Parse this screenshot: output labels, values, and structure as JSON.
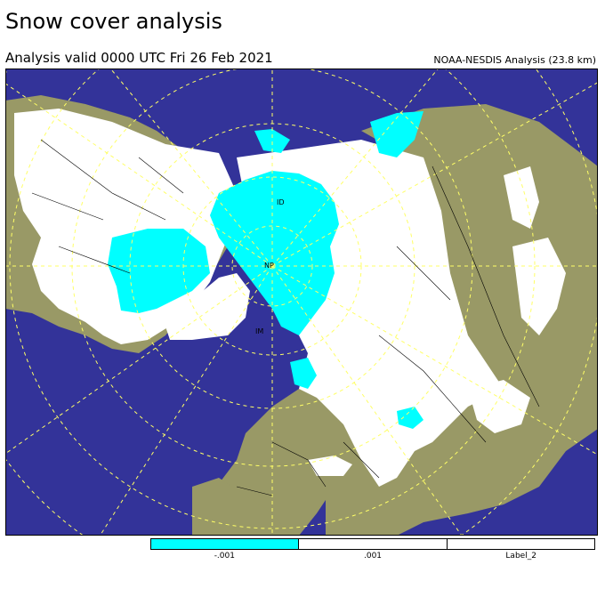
{
  "header": {
    "title": "Snow cover analysis",
    "valid": "Analysis valid 0000 UTC  Fri 26 Feb 2021",
    "source": "NOAA-NESDIS Analysis (23.8 km)"
  },
  "map": {
    "labels": {
      "north_pole": "NP",
      "ice_label_1": "ID",
      "ice_label_2": "IM"
    },
    "colors": {
      "ocean": "#333399",
      "land": "#999966",
      "snow": "#ffffff",
      "ice": "#00ffff",
      "grid": "#ffff66"
    }
  },
  "legend": {
    "items": [
      {
        "label": "-.001",
        "color": "#00ffff"
      },
      {
        "label": ".001",
        "color": "#ffffff"
      },
      {
        "label": "Label_2",
        "color": "#ffffff"
      }
    ]
  }
}
